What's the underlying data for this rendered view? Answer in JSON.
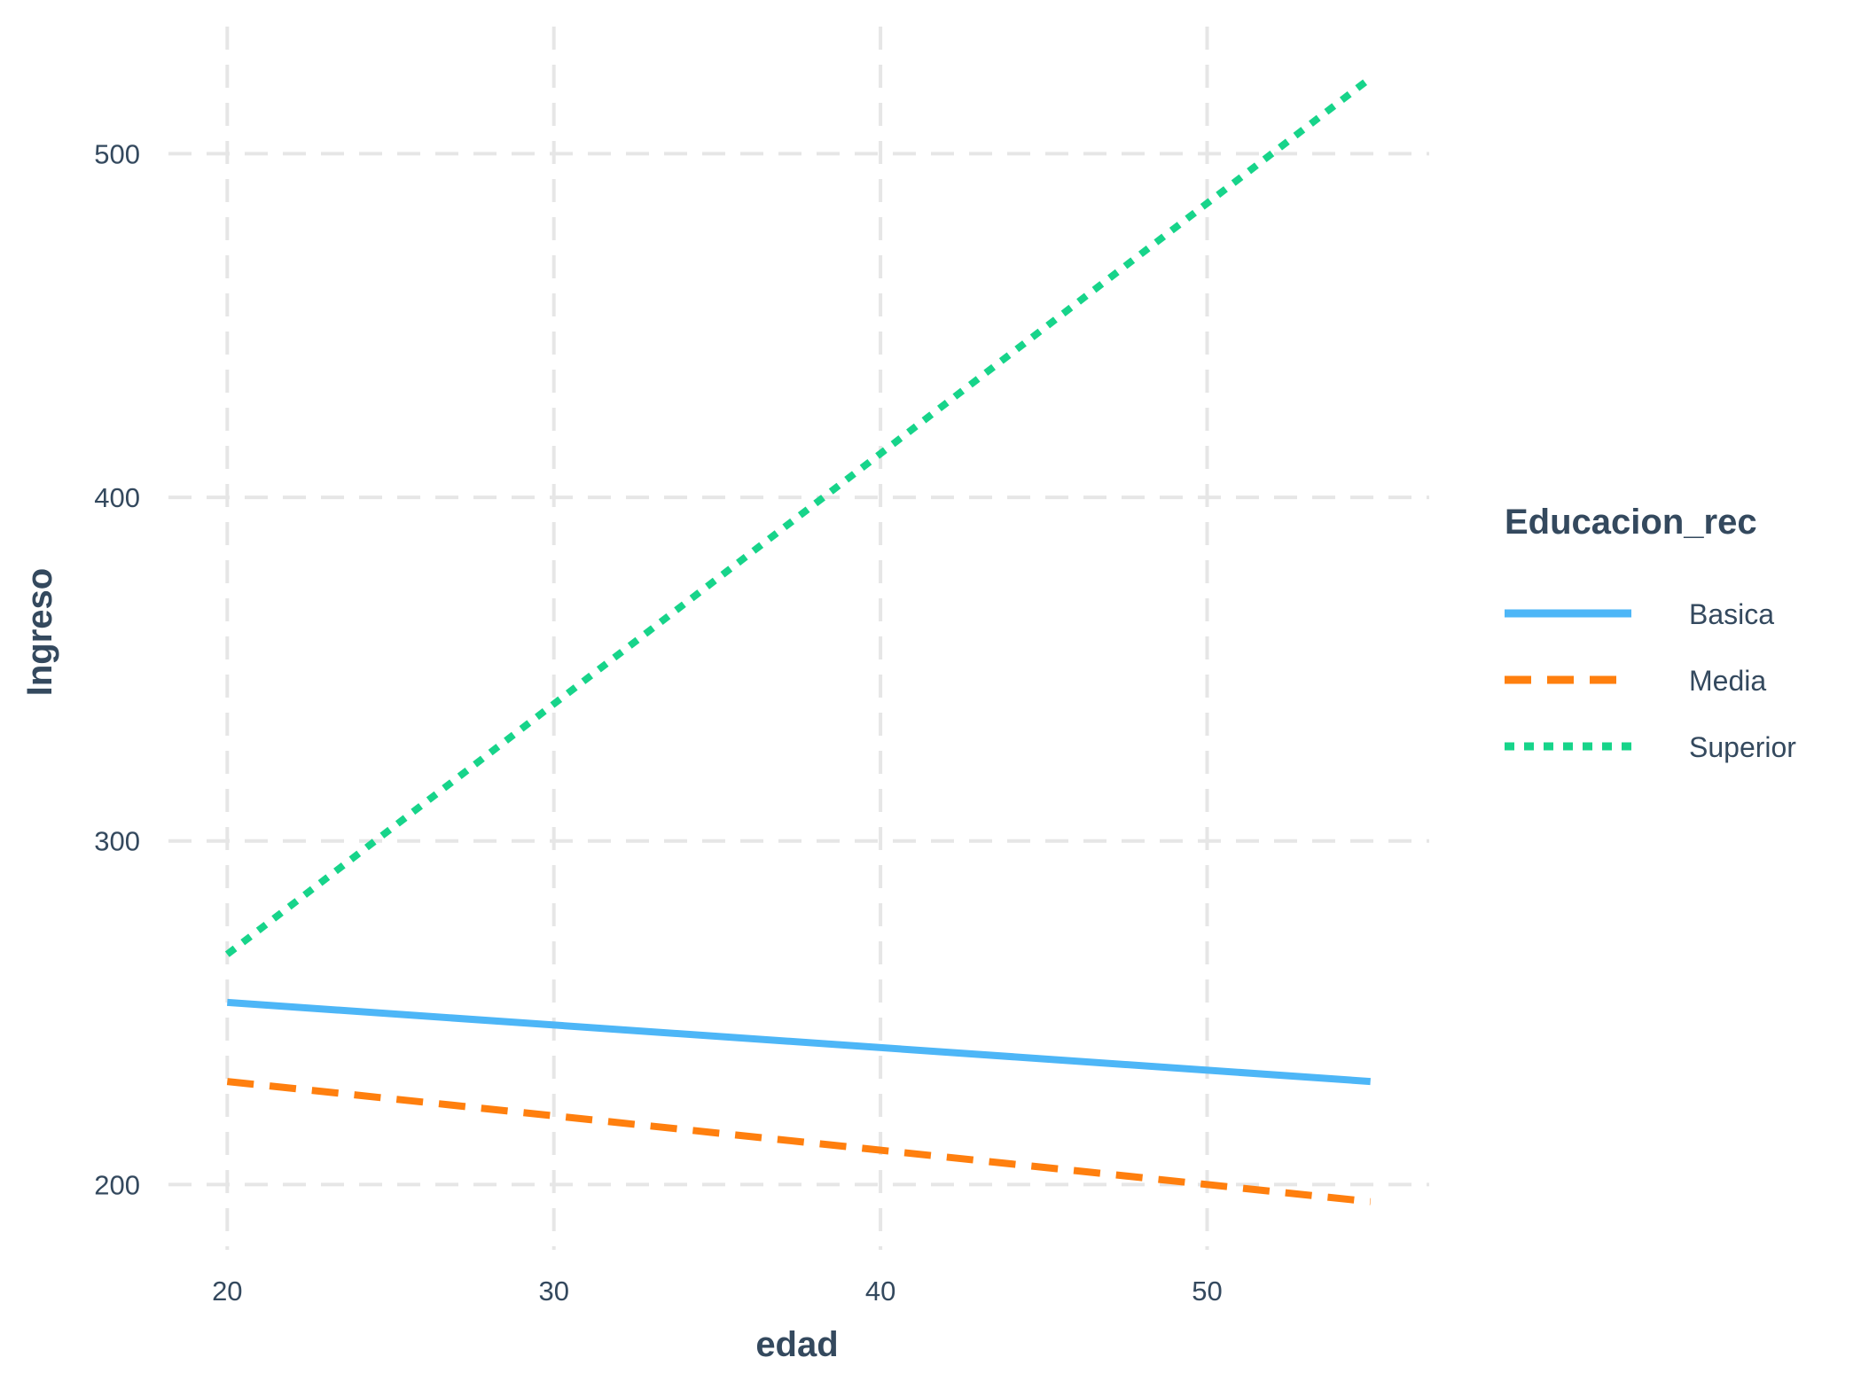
{
  "chart_data": {
    "type": "line",
    "title": "",
    "xlabel": "edad",
    "ylabel": "Ingreso",
    "xlim": [
      18.2,
      56.8
    ],
    "ylim": [
      181,
      537
    ],
    "x_ticks": [
      20,
      30,
      40,
      50
    ],
    "y_ticks": [
      200,
      300,
      400,
      500
    ],
    "grid": true,
    "legend": {
      "title": "Educacion_rec",
      "position": "right"
    },
    "series": [
      {
        "name": "Basica",
        "color": "#4db6f7",
        "dash": "solid",
        "x": [
          20,
          55
        ],
        "y": [
          253,
          230
        ]
      },
      {
        "name": "Media",
        "color": "#ff7f0e",
        "dash": "dashed",
        "x": [
          20,
          55
        ],
        "y": [
          230,
          195
        ]
      },
      {
        "name": "Superior",
        "color": "#17d48a",
        "dash": "dotted",
        "x": [
          20,
          55
        ],
        "y": [
          267,
          522
        ]
      }
    ]
  }
}
